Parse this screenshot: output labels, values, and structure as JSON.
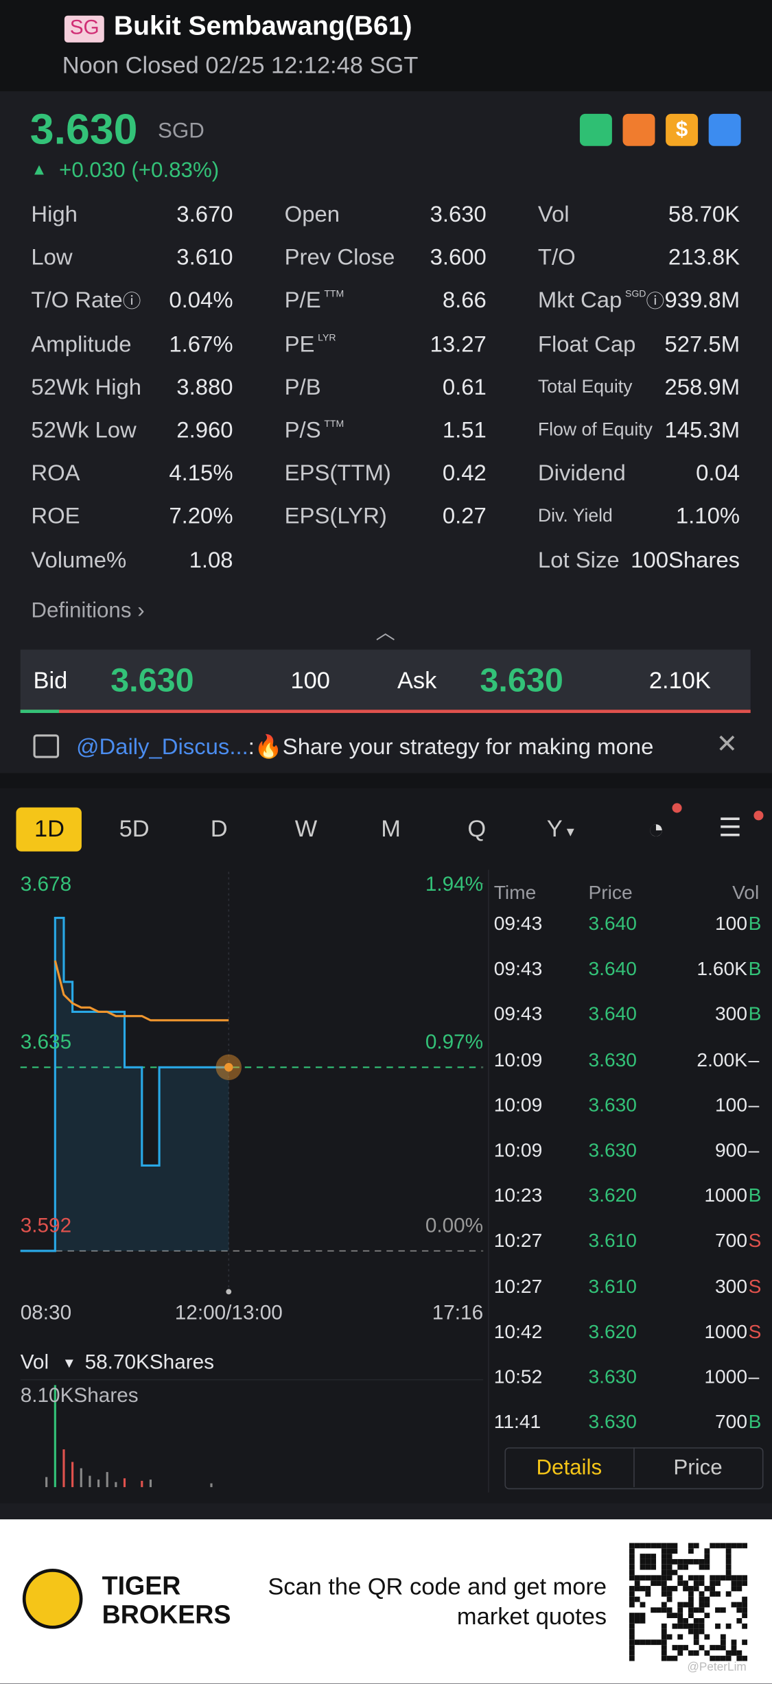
{
  "header": {
    "market": "SG",
    "title": "Bukit Sembawang(B61)",
    "status": "Noon Closed 02/25 12:12:48 SGT"
  },
  "quote": {
    "price": "3.630",
    "currency": "SGD",
    "change": "+0.030 (+0.83%)"
  },
  "stats": [
    [
      {
        "label": "High",
        "value": "3.670"
      },
      {
        "label": "Low",
        "value": "3.610"
      },
      {
        "label": "T/O Rate",
        "info": true,
        "value": "0.04%"
      },
      {
        "label": "Amplitude",
        "value": "1.67%"
      },
      {
        "label": "52Wk High",
        "value": "3.880"
      },
      {
        "label": "52Wk Low",
        "value": "2.960"
      },
      {
        "label": "ROA",
        "value": "4.15%"
      },
      {
        "label": "ROE",
        "value": "7.20%"
      },
      {
        "label": "Volume%",
        "value": "1.08"
      }
    ],
    [
      {
        "label": "Open",
        "value": "3.630"
      },
      {
        "label": "Prev Close",
        "value": "3.600"
      },
      {
        "label": "P/E",
        "sup": "TTM",
        "value": "8.66"
      },
      {
        "label": "PE",
        "sup": "LYR",
        "value": "13.27"
      },
      {
        "label": "P/B",
        "value": "0.61"
      },
      {
        "label": "P/S",
        "sup": "TTM",
        "value": "1.51"
      },
      {
        "label": "EPS(TTM)",
        "value": "0.42"
      },
      {
        "label": "EPS(LYR)",
        "value": "0.27"
      }
    ],
    [
      {
        "label": "Vol",
        "value": "58.70K"
      },
      {
        "label": "T/O",
        "value": "213.8K"
      },
      {
        "label": "Mkt Cap",
        "sup": "SGD",
        "info": true,
        "value": "939.8M"
      },
      {
        "label": "Float Cap",
        "value": "527.5M"
      },
      {
        "label": "Total Equity",
        "value": "258.9M"
      },
      {
        "label": "Flow of Equity",
        "value": "145.3M"
      },
      {
        "label": "Dividend",
        "value": "0.04"
      },
      {
        "label": "Div. Yield",
        "value": "1.10%"
      },
      {
        "label": "Lot Size",
        "value": "100Shares"
      }
    ]
  ],
  "definitions": "Definitions",
  "bid_ask": {
    "bid_label": "Bid",
    "bid": "3.630",
    "bid_size": "100",
    "ask_label": "Ask",
    "ask": "3.630",
    "ask_size": "2.10K"
  },
  "discussion": {
    "tag": "@Daily_Discus...",
    "text": ":🔥Share your strategy for making mone"
  },
  "tabs": [
    "1D",
    "5D",
    "D",
    "W",
    "M",
    "Q",
    "Y"
  ],
  "chart_data": {
    "type": "line",
    "ylim": [
      3.592,
      3.678
    ],
    "yticks": [
      3.592,
      3.635,
      3.678
    ],
    "y2lim": [
      0,
      1.94
    ],
    "y2ticks": [
      {
        "value": 0,
        "label": "0.00%"
      },
      {
        "value": 0.97,
        "label": "0.97%"
      },
      {
        "value": 1.94,
        "label": "1.94%"
      }
    ],
    "x_labels": [
      "08:30",
      "12:00/13:00",
      "17:16"
    ],
    "series": [
      {
        "color": "#29a8e6",
        "values": [
          3.592,
          3.592,
          3.592,
          3.592,
          3.67,
          3.655,
          3.648,
          3.648,
          3.648,
          3.648,
          3.648,
          3.648,
          3.635,
          3.635,
          3.612,
          3.612,
          3.635,
          3.635,
          3.635,
          3.635,
          3.635,
          3.635,
          3.635,
          3.635,
          3.635
        ]
      },
      {
        "color": "#f0962e",
        "values": [
          null,
          null,
          null,
          null,
          3.66,
          3.652,
          3.65,
          3.649,
          3.649,
          3.648,
          3.648,
          3.647,
          3.647,
          3.647,
          3.647,
          3.646,
          3.646,
          3.646,
          3.646,
          3.646,
          3.646,
          3.646,
          3.646,
          3.646,
          3.646
        ]
      }
    ],
    "volume_label": "Vol",
    "volume_total": "58.70KShares",
    "volume_max_label": "8.10KShares",
    "volume_ylim": [
      0,
      8100
    ],
    "volume": [
      null,
      null,
      null,
      800,
      8100,
      3000,
      2000,
      1500,
      900,
      600,
      1200,
      400,
      700,
      null,
      500,
      600,
      null,
      null,
      null,
      null,
      null,
      null,
      300,
      null,
      null
    ]
  },
  "trades": {
    "headers": [
      "Time",
      "Price",
      "Vol"
    ],
    "rows": [
      [
        "09:43",
        "3.640",
        "100",
        "B"
      ],
      [
        "09:43",
        "3.640",
        "1.60K",
        "B"
      ],
      [
        "09:43",
        "3.640",
        "300",
        "B"
      ],
      [
        "10:09",
        "3.630",
        "2.00K",
        "–"
      ],
      [
        "10:09",
        "3.630",
        "100",
        "–"
      ],
      [
        "10:09",
        "3.630",
        "900",
        "–"
      ],
      [
        "10:23",
        "3.620",
        "1000",
        "B"
      ],
      [
        "10:27",
        "3.610",
        "700",
        "S"
      ],
      [
        "10:27",
        "3.610",
        "300",
        "S"
      ],
      [
        "10:42",
        "3.620",
        "1000",
        "S"
      ],
      [
        "10:52",
        "3.630",
        "1000",
        "–"
      ],
      [
        "11:41",
        "3.630",
        "700",
        "B"
      ]
    ],
    "buttons": [
      "Details",
      "Price"
    ]
  },
  "footer": {
    "brand": [
      "TIGER",
      "BROKERS"
    ],
    "text": [
      "Scan the QR code and get more",
      "market quotes"
    ],
    "watermark": "@PeterLim"
  }
}
